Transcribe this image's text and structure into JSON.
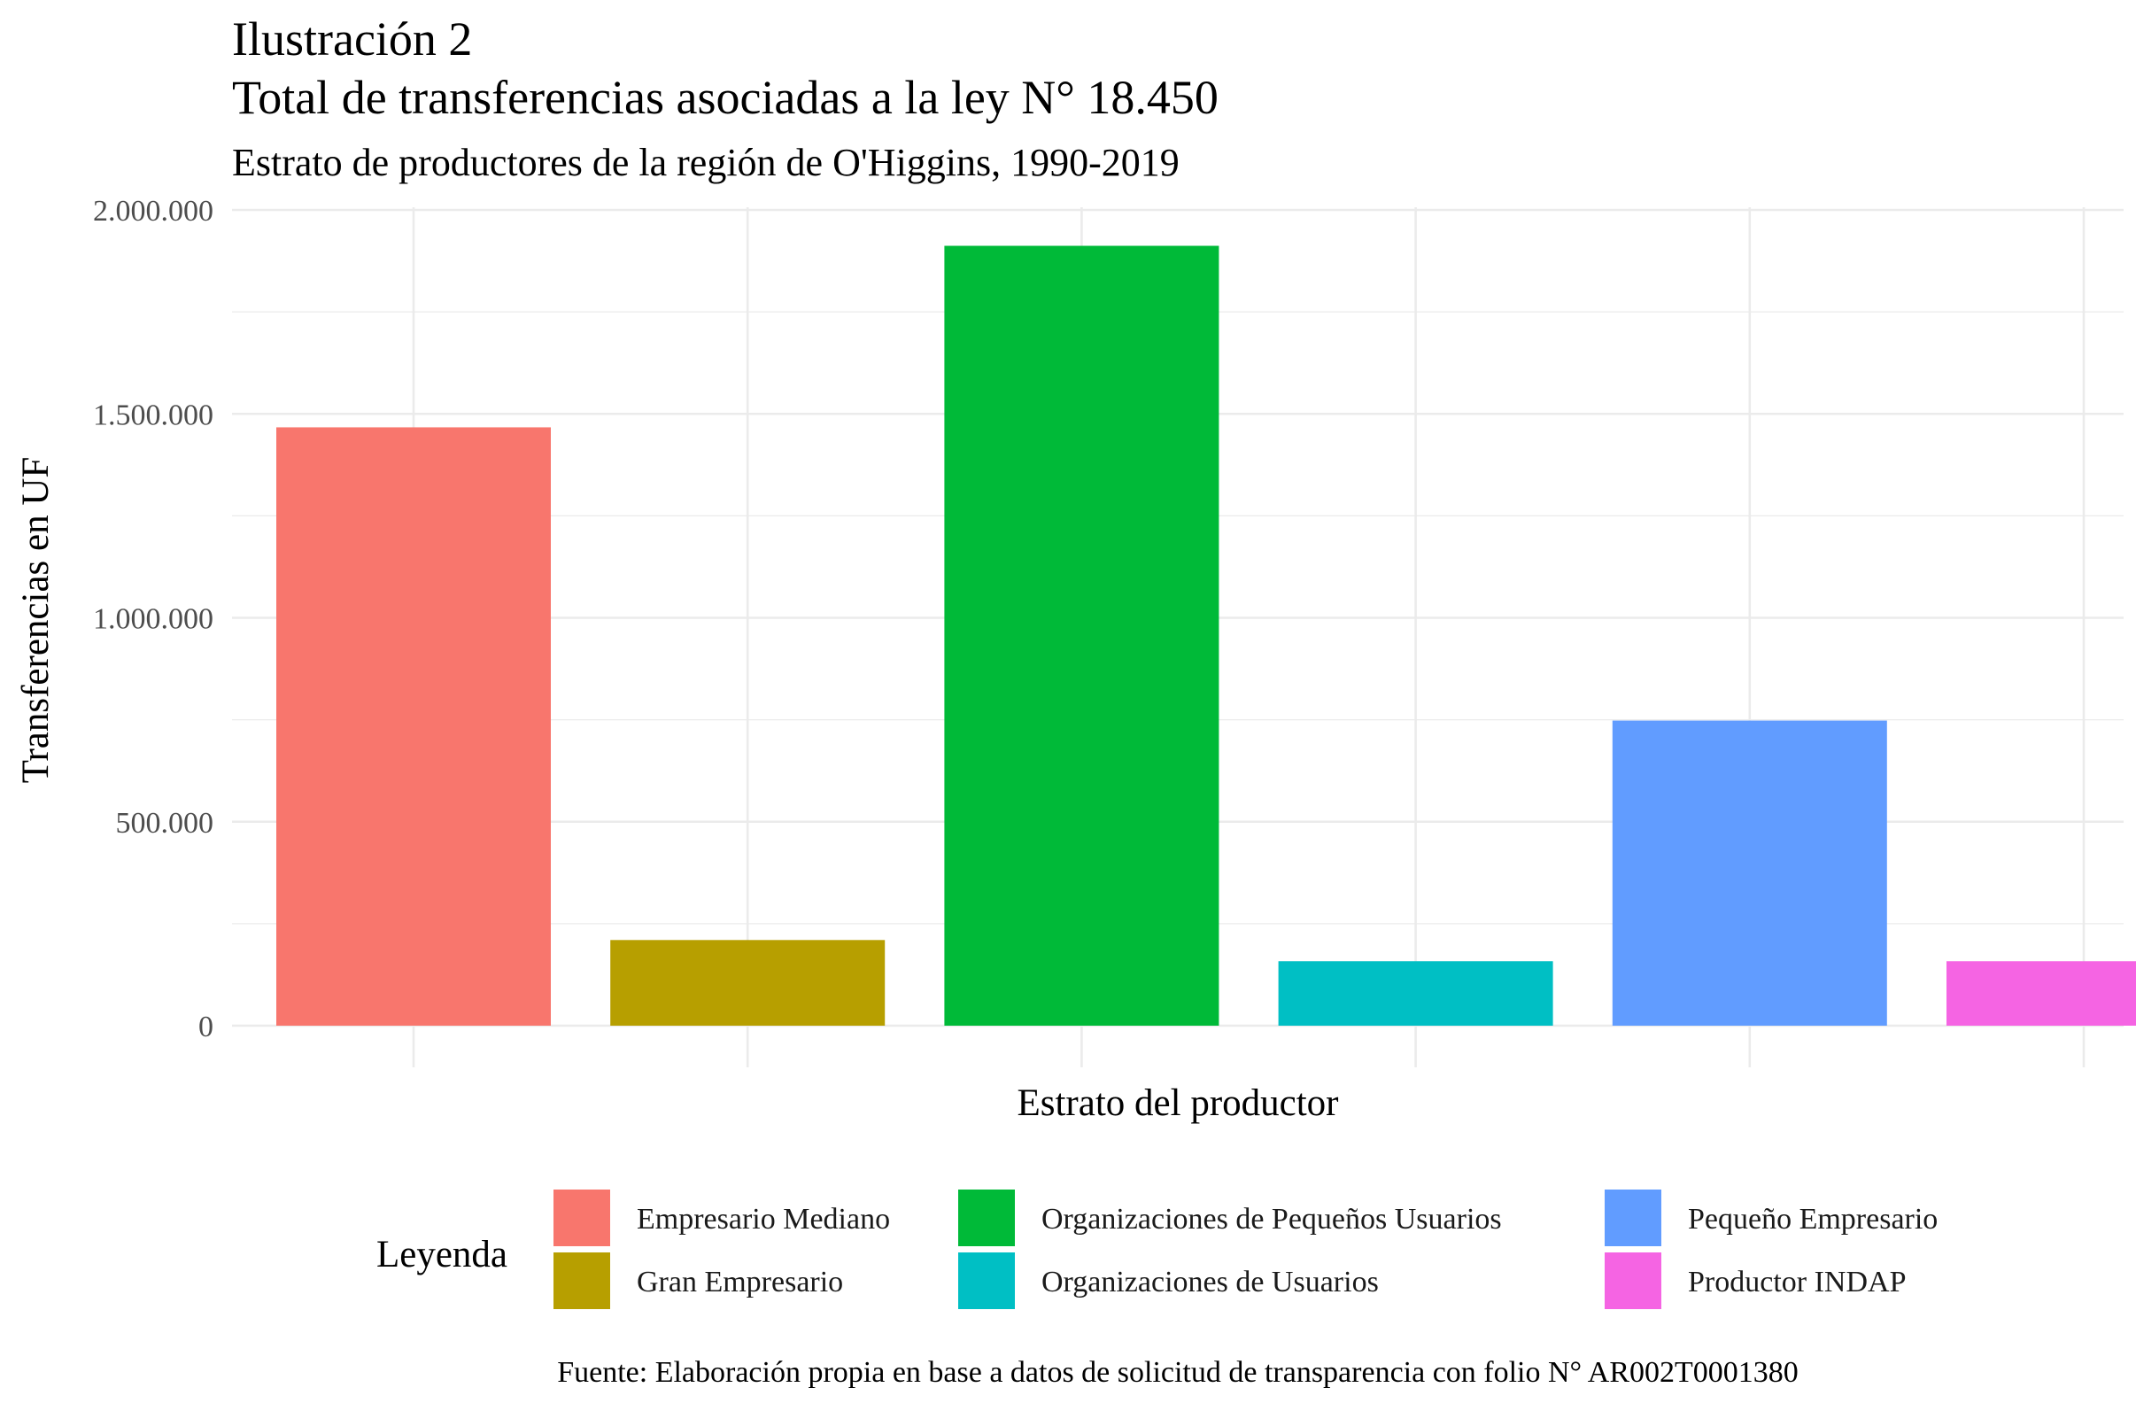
{
  "chart_data": {
    "type": "bar",
    "title": "Ilustración 2",
    "title_line2": "Total de transferencias asociadas a la ley N° 18.450",
    "subtitle": "Estrato de productores de la región de O'Higgins, 1990-2019",
    "xlabel": "Estrato del productor",
    "ylabel": "Transferencias en UF",
    "ylim": [
      0,
      2000000
    ],
    "yticks": [
      0,
      500000,
      1000000,
      1500000,
      2000000
    ],
    "ytick_labels": [
      "0",
      "500.000",
      "1.000.000",
      "1.500.000",
      "2.000.000"
    ],
    "categories": [
      "Empresario Mediano",
      "Gran Empresario",
      "Organizaciones de Pequeños Usuarios",
      "Organizaciones de Usuarios",
      "Pequeño Empresario",
      "Productor INDAP"
    ],
    "values": [
      1467000,
      210000,
      1912000,
      158000,
      748000,
      158000
    ],
    "colors": [
      "#F8766D",
      "#B79F00",
      "#00BA38",
      "#00BFC4",
      "#619CFF",
      "#F564E3"
    ],
    "grid": true,
    "legend": {
      "title": "Leyenda",
      "position": "bottom"
    },
    "caption": "Fuente: Elaboración propia en base a datos de solicitud de transparencia con folio N° AR002T0001380"
  }
}
